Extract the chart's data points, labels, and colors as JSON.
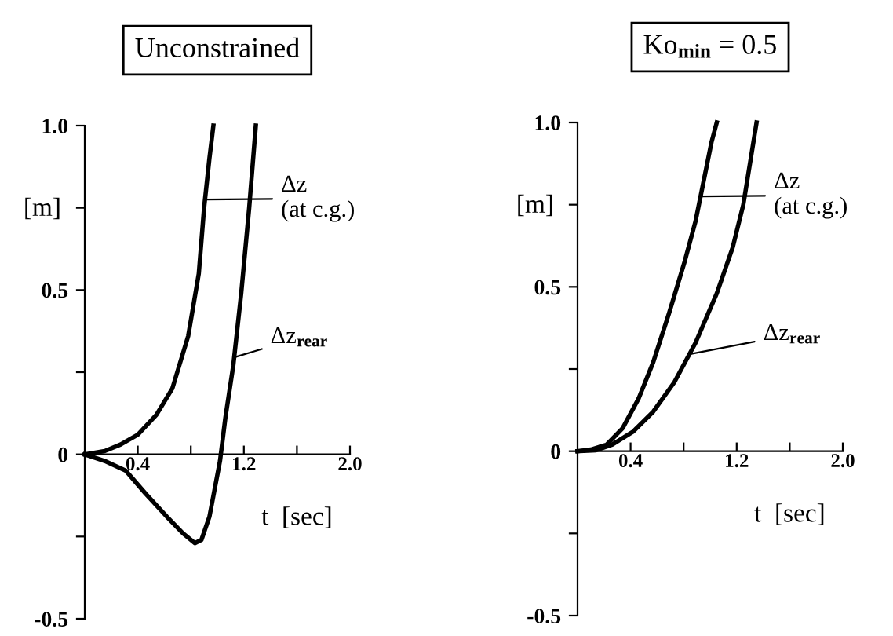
{
  "chart_data": [
    {
      "type": "line",
      "title": "Unconstrained",
      "ylabel": "[m]",
      "xlabel": "t  [sec]",
      "xlim": [
        0,
        2.0
      ],
      "ylim": [
        -0.5,
        1.0
      ],
      "xticks": [
        {
          "value": 0.4,
          "label": "0.4"
        },
        {
          "value": 0.8,
          "label": null
        },
        {
          "value": 1.2,
          "label": "1.2"
        },
        {
          "value": 1.6,
          "label": null
        },
        {
          "value": 2.0,
          "label": "2.0"
        }
      ],
      "yticks": [
        {
          "value": -0.5,
          "label": "-0.5"
        },
        {
          "value": -0.25,
          "label": null
        },
        0,
        {
          "value": 0.25,
          "label": null
        },
        {
          "value": 0.5,
          "label": "0.5"
        },
        {
          "value": 0.75,
          "label": null
        },
        {
          "value": 1.0,
          "label": "1.0"
        }
      ],
      "grid": false,
      "legend": "right",
      "marker": "none",
      "line_style": "solid",
      "series": [
        {
          "name": "Δz\n(at c.g.)",
          "color": "#000000",
          "x": [
            0,
            0.15,
            0.27,
            0.4,
            0.54,
            0.66,
            0.78,
            0.86,
            0.9,
            0.94,
            0.97
          ],
          "values": [
            0,
            0.01,
            0.03,
            0.06,
            0.12,
            0.2,
            0.36,
            0.55,
            0.75,
            0.9,
            1.0
          ]
        },
        {
          "name": "Δz$_{rear}$",
          "color": "#000000",
          "x": [
            0,
            0.15,
            0.31,
            0.46,
            0.62,
            0.74,
            0.83,
            0.88,
            0.94,
            1.02,
            1.06,
            1.12,
            1.18,
            1.24,
            1.29
          ],
          "values": [
            0,
            -0.02,
            -0.05,
            -0.12,
            -0.19,
            -0.24,
            -0.27,
            -0.26,
            -0.19,
            -0.02,
            0.11,
            0.27,
            0.49,
            0.75,
            1.0
          ]
        }
      ]
    },
    {
      "type": "line",
      "title": "Ko$_{min}$ = 0.5",
      "ylabel": "[m]",
      "xlabel": "t  [sec]",
      "xlim": [
        0,
        2.0
      ],
      "ylim": [
        -0.5,
        1.0
      ],
      "xticks": [
        {
          "value": 0.4,
          "label": "0.4"
        },
        {
          "value": 0.8,
          "label": null
        },
        {
          "value": 1.2,
          "label": "1.2"
        },
        {
          "value": 1.6,
          "label": null
        },
        {
          "value": 2.0,
          "label": "2.0"
        }
      ],
      "yticks": [
        {
          "value": -0.5,
          "label": "-0.5"
        },
        {
          "value": -0.25,
          "label": null
        },
        0,
        {
          "value": 0.25,
          "label": null
        },
        {
          "value": 0.5,
          "label": "0.5"
        },
        {
          "value": 0.75,
          "label": null
        },
        {
          "value": 1.0,
          "label": "1.0"
        }
      ],
      "grid": false,
      "legend": "right",
      "marker": "none",
      "line_style": "solid",
      "series": [
        {
          "name": "Δz\n(at c.g.)",
          "color": "#000000",
          "x": [
            0,
            0.1,
            0.22,
            0.34,
            0.46,
            0.57,
            0.69,
            0.81,
            0.89,
            0.97,
            1.01,
            1.05
          ],
          "values": [
            0,
            0.005,
            0.02,
            0.07,
            0.16,
            0.27,
            0.42,
            0.58,
            0.7,
            0.86,
            0.94,
            1.0
          ]
        },
        {
          "name": "Δz$_{rear}$",
          "color": "#000000",
          "x": [
            0,
            0.14,
            0.26,
            0.42,
            0.57,
            0.73,
            0.89,
            1.05,
            1.17,
            1.25,
            1.31,
            1.35
          ],
          "values": [
            0,
            0.003,
            0.02,
            0.06,
            0.12,
            0.21,
            0.33,
            0.48,
            0.62,
            0.75,
            0.9,
            1.0
          ]
        }
      ]
    }
  ]
}
